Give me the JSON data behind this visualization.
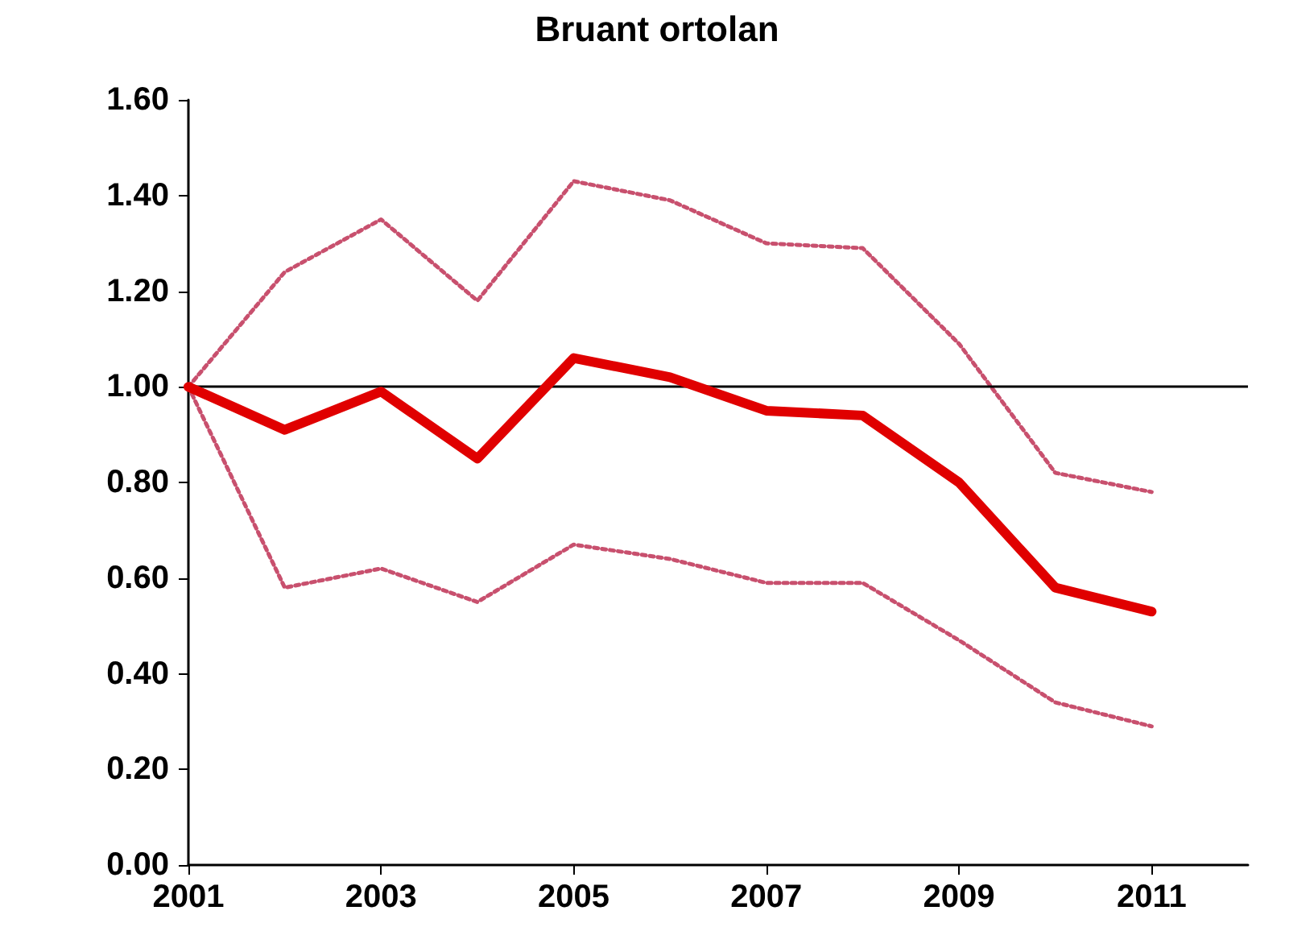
{
  "chart_data": {
    "type": "line",
    "title": "Bruant ortolan",
    "x": [
      2001,
      2002,
      2003,
      2004,
      2005,
      2006,
      2007,
      2008,
      2009,
      2010,
      2011
    ],
    "series": [
      {
        "color": "#c8506e",
        "line_style": "dotted",
        "values": [
          1.0,
          1.24,
          1.35,
          1.18,
          1.43,
          1.39,
          1.3,
          1.29,
          1.09,
          0.82,
          0.78
        ]
      },
      {
        "color": "#c8506e",
        "line_style": "dotted",
        "values": [
          1.0,
          0.58,
          0.62,
          0.55,
          0.67,
          0.64,
          0.59,
          0.59,
          0.47,
          0.34,
          0.29
        ]
      },
      {
        "color": "#e00000",
        "line_style": "solid",
        "values": [
          1.0,
          0.91,
          0.99,
          0.85,
          1.06,
          1.02,
          0.95,
          0.94,
          0.8,
          0.58,
          0.53
        ]
      }
    ],
    "xlim": [
      2001,
      2012
    ],
    "xticks": [
      2001,
      2003,
      2005,
      2007,
      2009,
      2011
    ],
    "ylim": [
      0,
      1.6
    ],
    "yticks": [
      {
        "value": 0,
        "label": "0.00"
      },
      {
        "value": 0.2,
        "label": "0.20"
      },
      {
        "value": 0.4,
        "label": "0.40"
      },
      {
        "value": 0.6,
        "label": "0.60"
      },
      {
        "value": 0.8,
        "label": "0.80"
      },
      {
        "value": 1,
        "label": "1.00"
      },
      {
        "value": 1.2,
        "label": "1.20"
      },
      {
        "value": 1.4,
        "label": "1.40"
      },
      {
        "value": 1.6,
        "label": "1.60"
      }
    ],
    "ref_lines": [
      {
        "axis": "y",
        "value": 1,
        "color": "#000000"
      }
    ],
    "grid": false,
    "marker": "none"
  }
}
